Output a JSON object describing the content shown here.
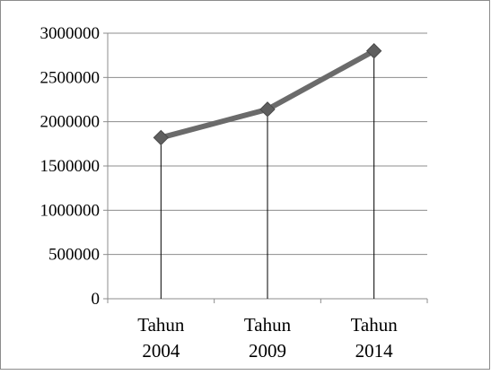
{
  "chart_data": {
    "type": "line",
    "categories": [
      [
        "Tahun",
        "2004"
      ],
      [
        "Tahun",
        "2009"
      ],
      [
        "Tahun",
        "2014"
      ]
    ],
    "series": [
      {
        "values": [
          1820000,
          2140000,
          2800000
        ],
        "color": "#6b6b6b",
        "marker": "diamond"
      }
    ],
    "yticks": [
      "3000000",
      "2500000",
      "2000000",
      "1500000",
      "1000000",
      "500000",
      "0"
    ],
    "ylim": [
      0,
      3000000
    ],
    "grid": true,
    "drop_lines": true,
    "legend": "none"
  }
}
